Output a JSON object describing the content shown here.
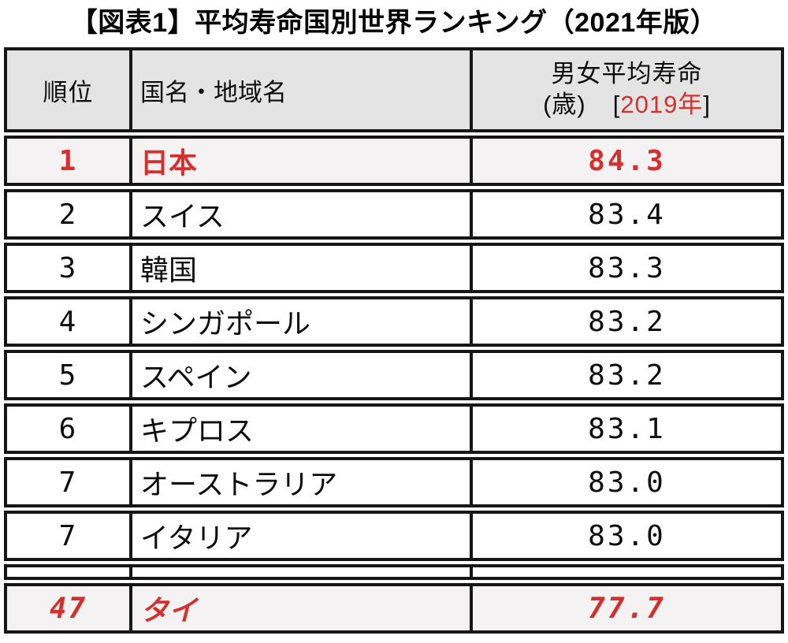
{
  "title": "【図表1】平均寿命国別世界ランキング（2021年版）",
  "colors": {
    "accent_red": "#d4302d",
    "header_bg": "#e5e4e4",
    "highlight_row_bg": "#f4f2f2",
    "border": "#161616"
  },
  "table": {
    "header": {
      "rank": "順位",
      "country": "国名・地域名",
      "lifespan_line1": "男女平均寿命",
      "lifespan_unit": "(歳)",
      "bracket_open": "[",
      "year": "2019年",
      "bracket_close": "]"
    },
    "rows": [
      {
        "rank": "1",
        "country": "日本",
        "value": "84.3"
      },
      {
        "rank": "2",
        "country": "スイス",
        "value": "83.4"
      },
      {
        "rank": "3",
        "country": "韓国",
        "value": "83.3"
      },
      {
        "rank": "4",
        "country": "シンガポール",
        "value": "83.2"
      },
      {
        "rank": "5",
        "country": "スペイン",
        "value": "83.2"
      },
      {
        "rank": "6",
        "country": "キプロス",
        "value": "83.1"
      },
      {
        "rank": "7",
        "country": "オーストラリア",
        "value": "83.0"
      },
      {
        "rank": "7",
        "country": "イタリア",
        "value": "83.0"
      },
      {
        "rank": "",
        "country": "",
        "value": ""
      },
      {
        "rank": "47",
        "country": "タイ",
        "value": "77.7"
      }
    ]
  },
  "chart_data": {
    "type": "table",
    "title": "【図表1】平均寿命国別世界ランキング（2021年版）",
    "columns": [
      "順位",
      "国名・地域名",
      "男女平均寿命(歳)[2019年]"
    ],
    "rows": [
      {
        "rank": 1,
        "country": "日本",
        "life_expectancy": 84.3,
        "highlighted": true
      },
      {
        "rank": 2,
        "country": "スイス",
        "life_expectancy": 83.4,
        "highlighted": false
      },
      {
        "rank": 3,
        "country": "韓国",
        "life_expectancy": 83.3,
        "highlighted": false
      },
      {
        "rank": 4,
        "country": "シンガポール",
        "life_expectancy": 83.2,
        "highlighted": false
      },
      {
        "rank": 5,
        "country": "スペイン",
        "life_expectancy": 83.2,
        "highlighted": false
      },
      {
        "rank": 6,
        "country": "キプロス",
        "life_expectancy": 83.1,
        "highlighted": false
      },
      {
        "rank": 7,
        "country": "オーストラリア",
        "life_expectancy": 83.0,
        "highlighted": false
      },
      {
        "rank": 7,
        "country": "イタリア",
        "life_expectancy": 83.0,
        "highlighted": false
      },
      {
        "rank": 47,
        "country": "タイ",
        "life_expectancy": 77.7,
        "highlighted": true
      }
    ],
    "notes": "Rows for rank 1 (Japan) and rank 47 (Thailand) are shown in bold red on light gray; thin empty spacer row between rank 7 (Italy) and rank 47."
  }
}
